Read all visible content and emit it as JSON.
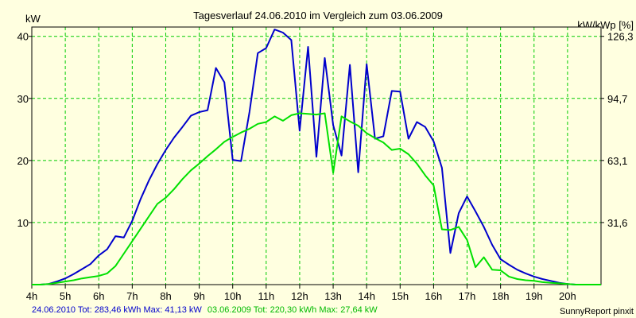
{
  "chart_data": {
    "type": "line",
    "title": "Tagesverlauf 24.06.2010 im Vergleich zum 03.06.2009",
    "ylabel_left": "kW",
    "ylabel_right": "kW/kWp [%]",
    "xlim": [
      4.0,
      21.0
    ],
    "ylim": [
      0,
      41.5
    ],
    "x_ticks": [
      4,
      5,
      6,
      7,
      8,
      9,
      10,
      11,
      12,
      13,
      14,
      15,
      16,
      17,
      18,
      19,
      20
    ],
    "x_tick_labels": [
      "4h",
      "5h",
      "6h",
      "7h",
      "8h",
      "9h",
      "10h",
      "11h",
      "12h",
      "13h",
      "14h",
      "15h",
      "16h",
      "17h",
      "18h",
      "19h",
      "20h"
    ],
    "y_left_ticks": [
      10,
      20,
      30,
      40
    ],
    "y_left_tick_labels": [
      "10",
      "20",
      "30",
      "40"
    ],
    "y_right_ticks": [
      10,
      20,
      30,
      40
    ],
    "y_right_tick_labels": [
      "31,6",
      "63,1",
      "94,7",
      "126,3"
    ],
    "grid": true,
    "colors": {
      "background": "#ffffe0",
      "grid": "#00cc00",
      "axes": "#000000"
    },
    "series": [
      {
        "name": "24.06.2010",
        "color": "#0000cc",
        "x": [
          4.0,
          4.25,
          4.5,
          4.75,
          5.0,
          5.25,
          5.5,
          5.75,
          6.0,
          6.25,
          6.5,
          6.75,
          7.0,
          7.25,
          7.5,
          7.75,
          8.0,
          8.25,
          8.5,
          8.75,
          9.0,
          9.25,
          9.5,
          9.75,
          10.0,
          10.25,
          10.5,
          10.75,
          11.0,
          11.25,
          11.5,
          11.75,
          12.0,
          12.25,
          12.5,
          12.75,
          13.0,
          13.25,
          13.5,
          13.75,
          14.0,
          14.25,
          14.5,
          14.75,
          15.0,
          15.25,
          15.5,
          15.75,
          16.0,
          16.25,
          16.5,
          16.75,
          17.0,
          17.25,
          17.5,
          17.75,
          18.0,
          18.25,
          18.5,
          18.75,
          19.0,
          19.25,
          19.5,
          19.75,
          20.0,
          20.25,
          20.5,
          20.75,
          21.0
        ],
        "values": [
          0,
          0,
          0.1,
          0.5,
          1.0,
          1.7,
          2.5,
          3.3,
          4.7,
          5.7,
          7.8,
          7.6,
          10.3,
          13.8,
          16.8,
          19.4,
          21.7,
          23.7,
          25.4,
          27.2,
          27.8,
          28.1,
          34.9,
          32.6,
          20.1,
          19.9,
          27.8,
          37.3,
          38.1,
          41.1,
          40.6,
          39.4,
          24.8,
          38.3,
          20.6,
          36.5,
          25.7,
          20.8,
          35.4,
          18.1,
          35.5,
          23.5,
          23.9,
          31.2,
          31.1,
          23.5,
          26.2,
          25.4,
          23.1,
          18.8,
          5.1,
          11.5,
          14.2,
          11.8,
          9.3,
          6.4,
          4.1,
          3.2,
          2.4,
          1.8,
          1.3,
          0.9,
          0.6,
          0.3,
          0.1,
          0,
          0,
          0,
          0
        ]
      },
      {
        "name": "03.06.2009",
        "color": "#00e000",
        "x": [
          4.0,
          4.25,
          4.5,
          4.75,
          5.0,
          5.25,
          5.5,
          5.75,
          6.0,
          6.25,
          6.5,
          6.75,
          7.0,
          7.25,
          7.5,
          7.75,
          8.0,
          8.25,
          8.5,
          8.75,
          9.0,
          9.25,
          9.5,
          9.75,
          10.0,
          10.25,
          10.5,
          10.75,
          11.0,
          11.25,
          11.5,
          11.75,
          12.0,
          12.25,
          12.5,
          12.75,
          13.0,
          13.25,
          13.5,
          13.75,
          14.0,
          14.25,
          14.5,
          14.75,
          15.0,
          15.25,
          15.5,
          15.75,
          16.0,
          16.25,
          16.5,
          16.75,
          17.0,
          17.25,
          17.5,
          17.75,
          18.0,
          18.25,
          18.5,
          18.75,
          19.0,
          19.25,
          19.5,
          19.75,
          20.0,
          20.25,
          20.5,
          20.75,
          21.0
        ],
        "values": [
          0,
          0,
          0.1,
          0.3,
          0.5,
          0.7,
          1.0,
          1.2,
          1.4,
          1.8,
          3.0,
          5.0,
          7.0,
          9.0,
          11.0,
          13.0,
          14.0,
          15.4,
          17.0,
          18.4,
          19.5,
          20.7,
          21.8,
          23.0,
          23.8,
          24.5,
          25.1,
          25.9,
          26.2,
          27.1,
          26.4,
          27.3,
          27.6,
          27.5,
          27.4,
          27.6,
          18.0,
          27.1,
          26.3,
          25.6,
          24.4,
          23.6,
          22.9,
          21.7,
          21.9,
          21.0,
          19.5,
          17.6,
          16.0,
          8.9,
          8.8,
          9.3,
          7.2,
          2.8,
          4.4,
          2.4,
          2.3,
          1.3,
          0.9,
          0.7,
          0.6,
          0.4,
          0.3,
          0.2,
          0.1,
          0,
          0,
          0,
          0
        ]
      }
    ]
  },
  "footer": {
    "series1_label": "24.06.2010 Tot: 283,46 kWh Max: 41,13 kW",
    "series2_label": "03.06.2009 Tot: 220,30 kWh Max: 27,64 kW",
    "credit": "SunnyReport pinxit"
  }
}
